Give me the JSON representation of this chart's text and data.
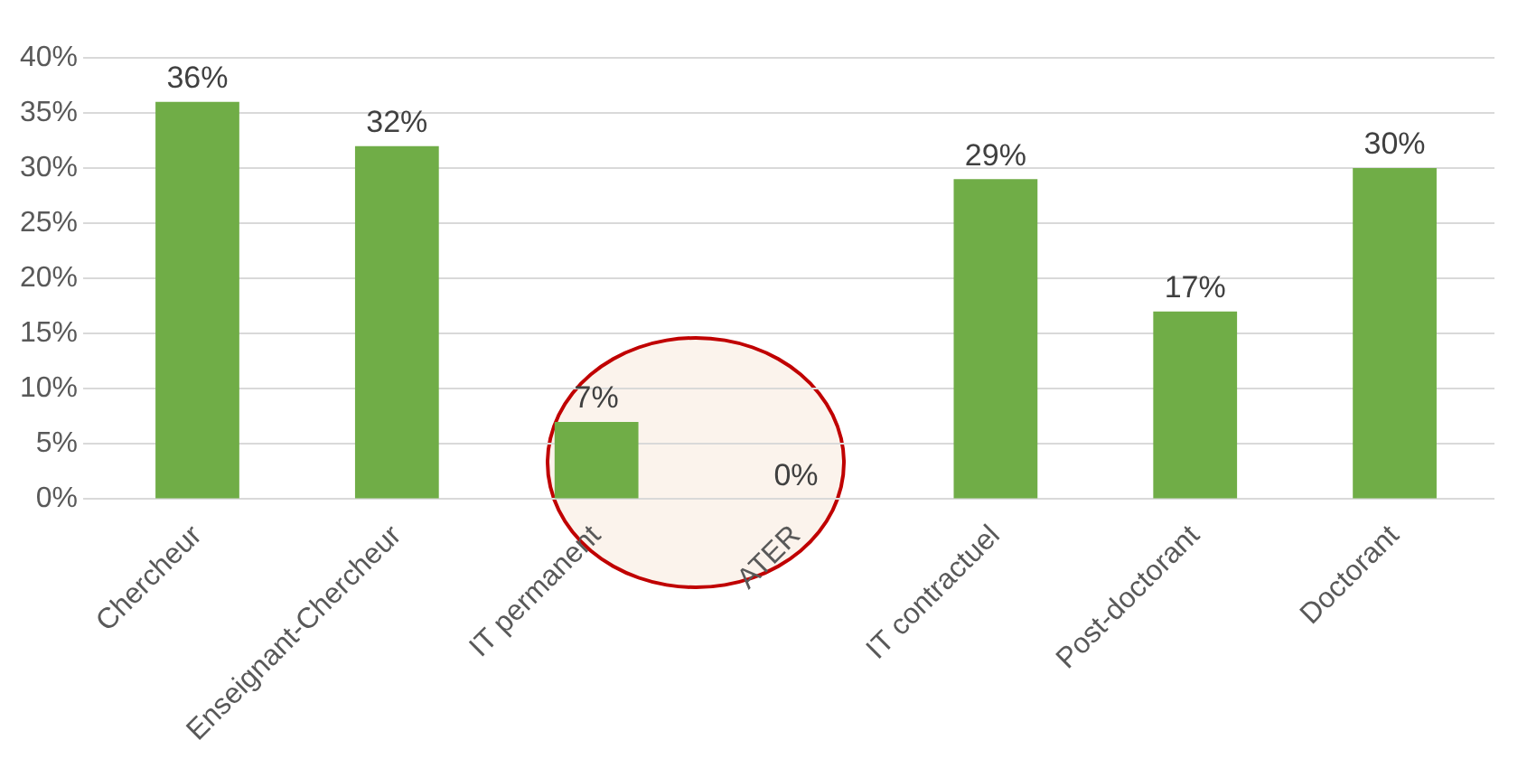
{
  "chart_data": {
    "type": "bar",
    "categories": [
      "Chercheur",
      "Enseignant-Chercheur",
      "IT permanent",
      "ATER",
      "IT contractuel",
      "Post-doctorant",
      "Doctorant"
    ],
    "values": [
      36,
      32,
      7,
      0,
      29,
      17,
      30
    ],
    "value_labels": [
      "36%",
      "32%",
      "7%",
      "0%",
      "29%",
      "17%",
      "30%"
    ],
    "color": "#70ad47",
    "ylim": [
      0,
      40
    ],
    "yticks": [
      {
        "value": 0,
        "label": "0%"
      },
      {
        "value": 5,
        "label": "5%"
      },
      {
        "value": 10,
        "label": "10%"
      },
      {
        "value": 15,
        "label": "15%"
      },
      {
        "value": 20,
        "label": "20%"
      },
      {
        "value": 25,
        "label": "25%"
      },
      {
        "value": 30,
        "label": "30%"
      },
      {
        "value": 35,
        "label": "35%"
      },
      {
        "value": 40,
        "label": "40%"
      }
    ],
    "grid": "y"
  }
}
